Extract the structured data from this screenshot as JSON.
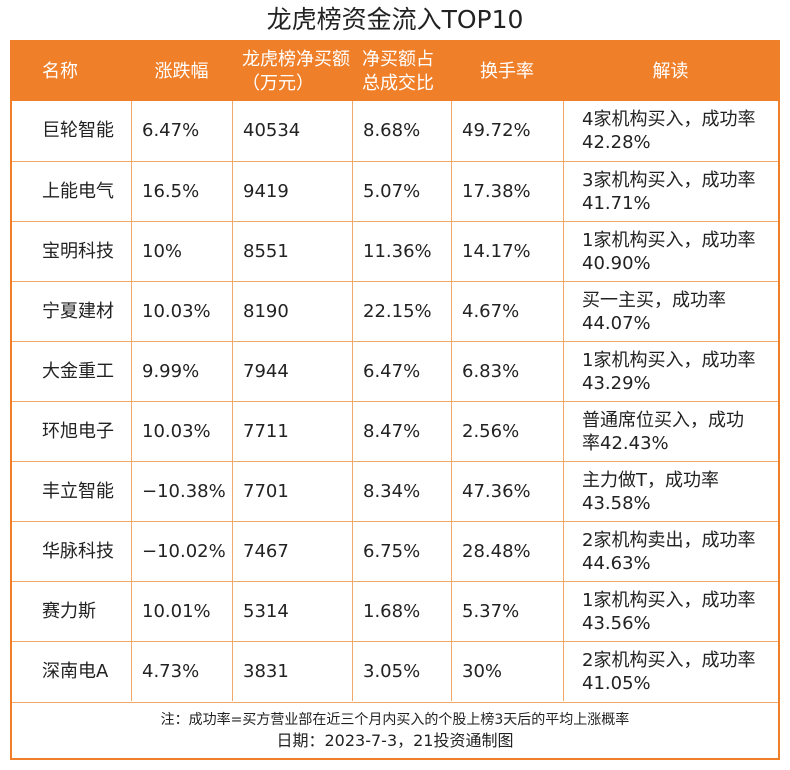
{
  "title": "龙虎榜资金流入TOP10",
  "headers": {
    "name": "名称",
    "change": "涨跌幅",
    "net_buy": "龙虎榜净买额（万元）",
    "ratio": "净买额占总成交比",
    "turnover": "换手率",
    "interpretation": "解读"
  },
  "rows": [
    {
      "name": "巨轮智能",
      "change": "6.47%",
      "net_buy": "40534",
      "ratio": "8.68%",
      "turnover": "49.72%",
      "interpretation": "4家机构买入，成功率42.28%"
    },
    {
      "name": "上能电气",
      "change": "16.5%",
      "net_buy": "9419",
      "ratio": "5.07%",
      "turnover": "17.38%",
      "interpretation": "3家机构买入，成功率41.71%"
    },
    {
      "name": "宝明科技",
      "change": "10%",
      "net_buy": "8551",
      "ratio": "11.36%",
      "turnover": "14.17%",
      "interpretation": "1家机构买入，成功率40.90%"
    },
    {
      "name": "宁夏建材",
      "change": "10.03%",
      "net_buy": "8190",
      "ratio": "22.15%",
      "turnover": "4.67%",
      "interpretation": "买一主买，成功率44.07%"
    },
    {
      "name": "大金重工",
      "change": "9.99%",
      "net_buy": "7944",
      "ratio": "6.47%",
      "turnover": "6.83%",
      "interpretation": "1家机构买入，成功率43.29%"
    },
    {
      "name": "环旭电子",
      "change": "10.03%",
      "net_buy": "7711",
      "ratio": "8.47%",
      "turnover": "2.56%",
      "interpretation": "普通席位买入，成功率42.43%"
    },
    {
      "name": "丰立智能",
      "change": "−10.38%",
      "net_buy": "7701",
      "ratio": "8.34%",
      "turnover": "47.36%",
      "interpretation": "主力做T，成功率43.58%"
    },
    {
      "name": "华脉科技",
      "change": "−10.02%",
      "net_buy": "7467",
      "ratio": "6.75%",
      "turnover": "28.48%",
      "interpretation": "2家机构卖出，成功率44.63%"
    },
    {
      "name": "赛力斯",
      "change": "10.01%",
      "net_buy": "5314",
      "ratio": "1.68%",
      "turnover": "5.37%",
      "interpretation": "1家机构买入，成功率43.56%"
    },
    {
      "name": "深南电A",
      "change": "4.73%",
      "net_buy": "3831",
      "ratio": "3.05%",
      "turnover": "30%",
      "interpretation": "2家机构买入，成功率41.05%"
    }
  ],
  "note": "注：成功率=买方营业部在近三个月内买入的个股上榜3天后的平均上涨概率",
  "date_line": "日期：2023-7-3，21投资通制图",
  "colors": {
    "accent": "#f07f29",
    "grid": "#f0a868"
  }
}
